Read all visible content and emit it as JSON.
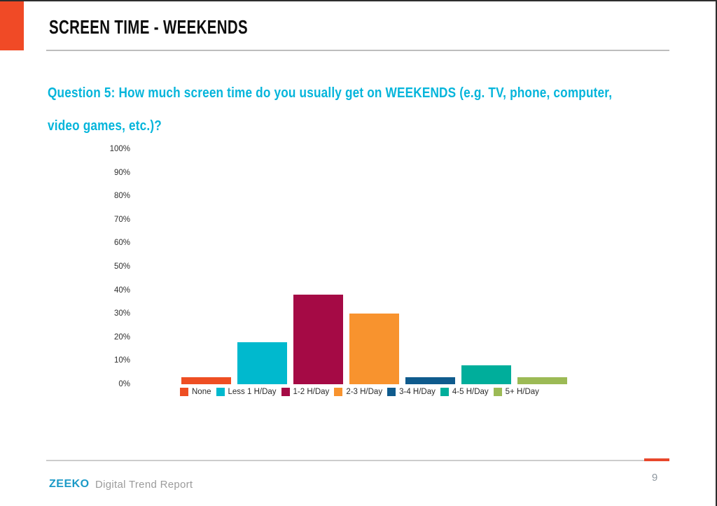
{
  "page": {
    "title": "SCREEN TIME - WEEKENDS",
    "accent_color": "#F04A26"
  },
  "question": {
    "text": "Question 5: How much screen time do you usually get on WEEKENDS (e.g. TV, phone, computer, video games, etc.)?",
    "color": "#05B5DB"
  },
  "chart_data": {
    "type": "bar",
    "categories": [
      "None",
      "Less 1 H/Day",
      "1-2 H/Day",
      "2-3 H/Day",
      "3-4 H/Day",
      "4-5 H/Day",
      "5+ H/Day"
    ],
    "values": [
      3,
      18,
      38,
      30,
      3,
      8,
      3
    ],
    "colors": [
      "#EE4E23",
      "#00B9CE",
      "#A50A45",
      "#F8932E",
      "#0F5B8D",
      "#00AE9B",
      "#9CBA55"
    ],
    "title": "",
    "xlabel": "",
    "ylabel": "",
    "ylim": [
      0,
      100
    ],
    "ytick_labels": [
      "100%",
      "90%",
      "80%",
      "70%",
      "60%",
      "50%",
      "40%",
      "30%",
      "20%",
      "10%",
      "0%"
    ],
    "grid": false,
    "legend_position": "bottom"
  },
  "footer": {
    "brand": "ZEEKO",
    "brand_color": "#1B9AC7",
    "report_name": "Digital Trend Report",
    "page_number": "9",
    "accent_color": "#E8472B"
  }
}
